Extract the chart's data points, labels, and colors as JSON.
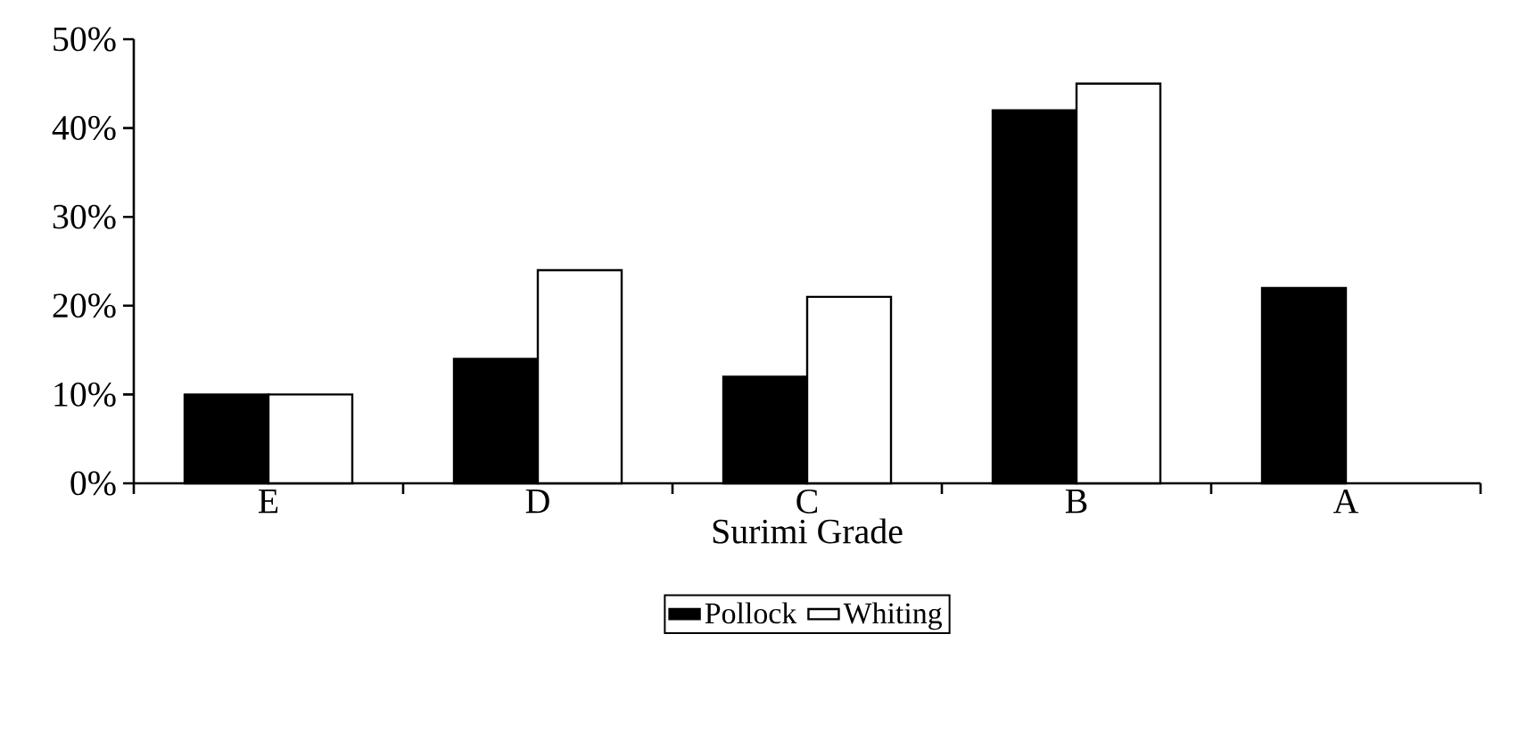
{
  "chart_data": {
    "type": "bar",
    "xlabel": "Surimi Grade",
    "categories": [
      "E",
      "D",
      "C",
      "B",
      "A"
    ],
    "series": [
      {
        "name": "Pollock",
        "color": "#000000",
        "values": [
          10,
          14,
          12,
          42,
          22
        ]
      },
      {
        "name": "Whiting",
        "color": "#ffffff",
        "values": [
          10,
          24,
          21,
          45,
          null
        ]
      }
    ],
    "ylim": [
      0,
      50
    ],
    "yticks": [
      {
        "value": 0,
        "label": "0%"
      },
      {
        "value": 10,
        "label": "10%"
      },
      {
        "value": 20,
        "label": "20%"
      },
      {
        "value": 30,
        "label": "30%"
      },
      {
        "value": 40,
        "label": "40%"
      },
      {
        "value": 50,
        "label": "50%"
      }
    ],
    "grid": false,
    "legend": "bottom"
  }
}
